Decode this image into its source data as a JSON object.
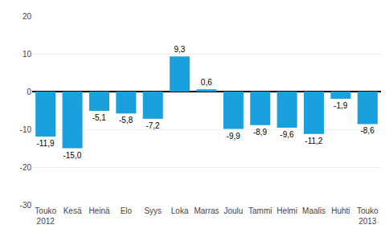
{
  "chart_data": {
    "type": "bar",
    "categories": [
      "Touko\n2012",
      "Kesä",
      "Heinä",
      "Elo",
      "Syys",
      "Loka",
      "Marras",
      "Joulu",
      "Tammi",
      "Helmi",
      "Maalis",
      "Huhti",
      "Touko\n2013"
    ],
    "values": [
      -11.9,
      -15.0,
      -5.1,
      -5.8,
      -7.2,
      9.3,
      0.6,
      -9.9,
      -8.9,
      -9.6,
      -11.2,
      -1.9,
      -8.6
    ],
    "value_labels": [
      "-11,9",
      "-15,0",
      "-5,1",
      "-5,8",
      "-7,2",
      "9,3",
      "0,6",
      "-9,9",
      "-8,9",
      "-9,6",
      "-11,2",
      "-1,9",
      "-8,6"
    ],
    "data_labels": true,
    "color": "#1aa0dc",
    "ylim": [
      -30,
      20
    ],
    "yticks": [
      -30,
      -20,
      -10,
      0,
      10,
      20
    ],
    "grid": true
  }
}
